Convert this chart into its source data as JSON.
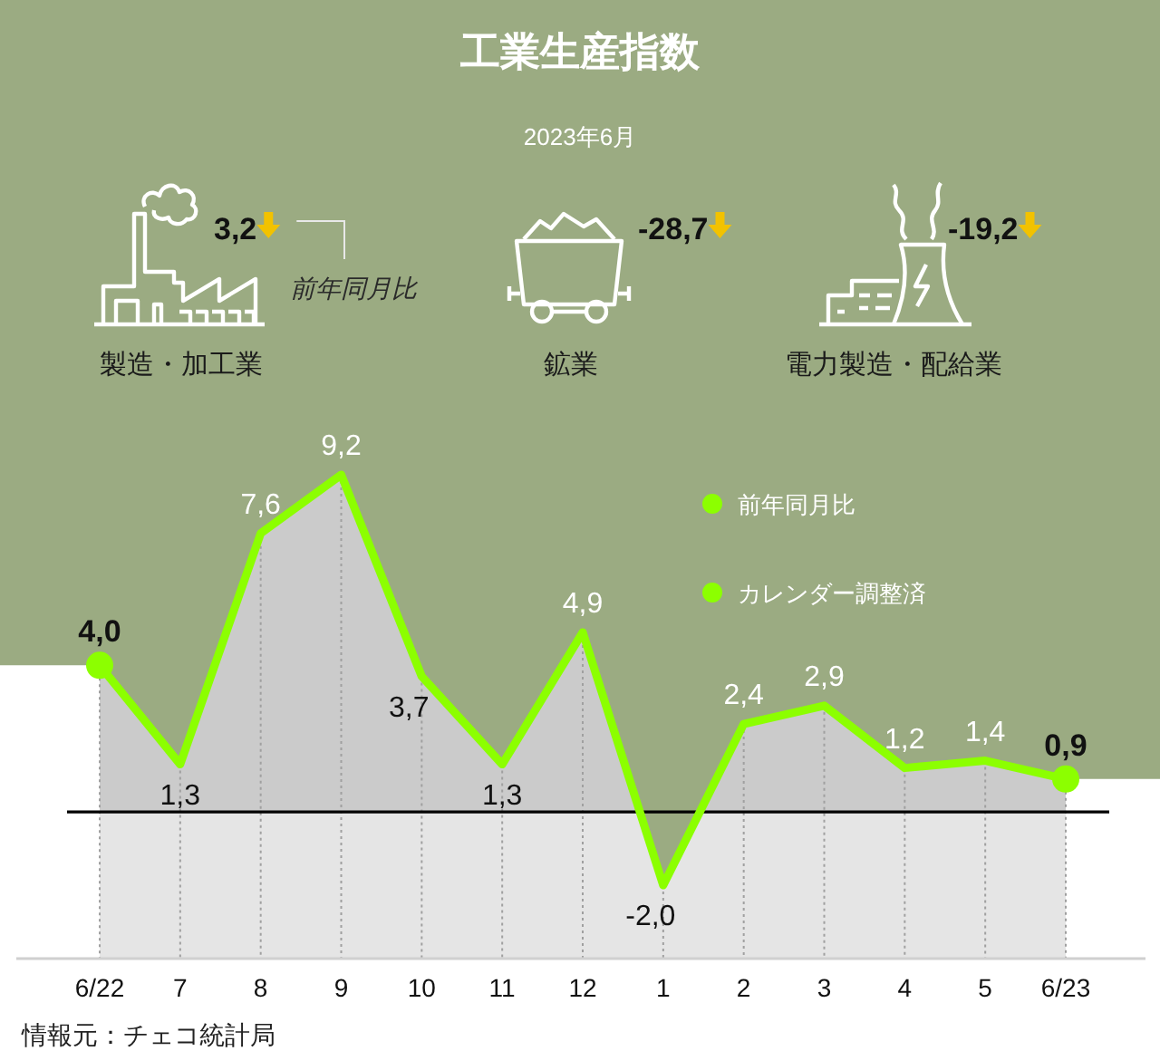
{
  "chart_data": [
    {
      "type": "other",
      "title": "工業生産指数",
      "subtitle": "2023年6月",
      "categories": [
        "製造・加工業",
        "鉱業",
        "電力製造・配給業"
      ],
      "value_labels": [
        "3,2",
        "-28,7",
        "-19,2"
      ],
      "annotations": [
        "前年同月比"
      ]
    },
    {
      "type": "area",
      "categories": [
        "6/22",
        "7",
        "8",
        "9",
        "10",
        "11",
        "12",
        "1",
        "2",
        "3",
        "4",
        "5",
        "6/23"
      ],
      "tick_labels": "x",
      "grid": "x",
      "legend": "top right",
      "series": [
        {
          "name": "前年同月比",
          "color": "#8cff00",
          "values": [
            4.0,
            1.3,
            7.6,
            9.2,
            3.7,
            1.3,
            4.9,
            -2.0,
            2.4,
            2.9,
            1.2,
            1.4,
            0.9
          ],
          "value_labels": [
            null,
            "1,3",
            "7,6",
            "9,2",
            "3,7",
            "1,3",
            "4,9",
            "-2,0",
            "2,4",
            "2,9",
            "1,2",
            "1,4",
            null
          ]
        },
        {
          "type": "scatter",
          "color": "#8cff00",
          "marker": "circle",
          "x": [
            "6/22",
            "6/23"
          ],
          "values": [
            4.0,
            0.9
          ],
          "value_labels": [
            "4,0",
            "0,9"
          ]
        }
      ],
      "ref_lines": [
        {
          "axis": "y",
          "value": 0,
          "color": "#000000"
        }
      ],
      "bands": [
        {
          "axis": "y",
          "from": -4,
          "to": 0,
          "color": "#e5e5e5"
        }
      ],
      "annotations": [
        "カレンダー調整済",
        "情報元：チェコ統計局"
      ]
    }
  ]
}
